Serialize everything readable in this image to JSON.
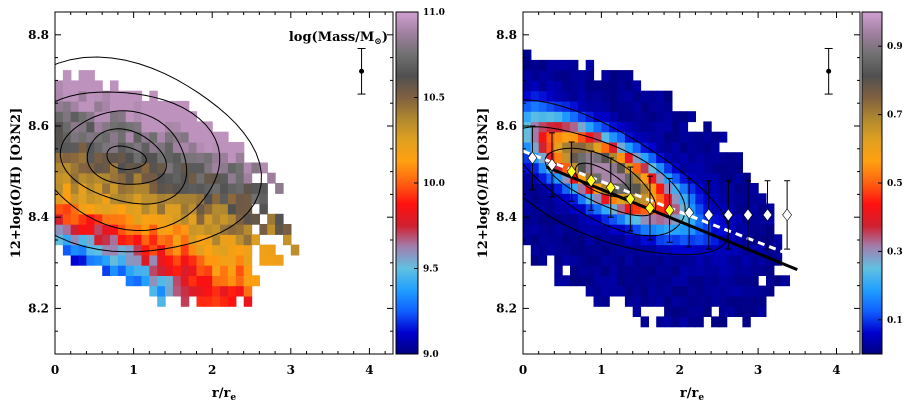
{
  "chart_data": [
    {
      "type": "heatmap",
      "panel": "left",
      "xlabel": "r/r",
      "xlabel_sub": "e",
      "ylabel": "12+log(O/H) [O3N2]",
      "xlim": [
        0,
        4.3
      ],
      "ylim": [
        8.1,
        8.85
      ],
      "x_ticks": [
        0,
        1,
        2,
        3,
        4
      ],
      "x_tick_labels": [
        "0",
        "1",
        "2",
        "3",
        "4"
      ],
      "y_ticks": [
        8.2,
        8.4,
        8.6,
        8.8
      ],
      "y_tick_labels": [
        "8.2",
        "8.4",
        "8.6",
        "8.8"
      ],
      "annotation": "log(Mass/M",
      "annotation_sym": "⊙",
      "annotation_close": ")",
      "colorbar": {
        "range": [
          9.0,
          11.0
        ],
        "ticks": [
          9.0,
          9.5,
          10.0,
          10.5,
          11.0
        ],
        "tick_labels": [
          "9.0",
          "9.5",
          "10.0",
          "10.5",
          "11.0"
        ],
        "colormap": [
          "#000080",
          "#0000d0",
          "#1060ff",
          "#20a0ff",
          "#60c0e0",
          "#a080b0",
          "#d02030",
          "#ff1010",
          "#ff6010",
          "#ffa010",
          "#e0a020",
          "#b08830",
          "#806040",
          "#505050",
          "#707070",
          "#a080a0",
          "#d0a0d0"
        ]
      },
      "contours": {
        "center": [
          0.9,
          8.53
        ],
        "levels": [
          {
            "rx": 0.25,
            "ry": 0.025
          },
          {
            "rx": 0.5,
            "ry": 0.06
          },
          {
            "rx": 0.8,
            "ry": 0.1
          },
          {
            "rx": 1.2,
            "ry": 0.15
          },
          {
            "rx": 1.65,
            "ry": 0.21
          }
        ]
      },
      "error_bar": {
        "x": 3.9,
        "y": 8.72,
        "yerr": 0.05
      }
    },
    {
      "type": "heatmap",
      "panel": "right",
      "xlabel": "r/r",
      "xlabel_sub": "e",
      "ylabel": "12+log(O/H) [O3N2]",
      "xlim": [
        0,
        4.3
      ],
      "ylim": [
        8.1,
        8.85
      ],
      "x_ticks": [
        0,
        1,
        2,
        3,
        4
      ],
      "x_tick_labels": [
        "0",
        "1",
        "2",
        "3",
        "4"
      ],
      "y_ticks": [
        8.2,
        8.4,
        8.6,
        8.8
      ],
      "y_tick_labels": [
        "8.2",
        "8.4",
        "8.6",
        "8.8"
      ],
      "colorbar": {
        "range": [
          0.0,
          1.0
        ],
        "ticks": [
          0.1,
          0.3,
          0.5,
          0.7,
          0.9
        ],
        "tick_labels": [
          "0.1",
          "0.3",
          "0.5",
          "0.7",
          "0.9"
        ],
        "colormap": [
          "#000080",
          "#0000d0",
          "#1060ff",
          "#20a0ff",
          "#60c0e0",
          "#a080b0",
          "#d02030",
          "#ff1010",
          "#ff6010",
          "#ffa010",
          "#e0a020",
          "#b08830",
          "#806040",
          "#505050",
          "#707070",
          "#a080a0",
          "#d0a0d0"
        ]
      },
      "contours": {
        "center": [
          1.0,
          8.48
        ],
        "levels": [
          {
            "rx": 0.35,
            "ry": 0.028
          },
          {
            "rx": 0.7,
            "ry": 0.055
          },
          {
            "rx": 1.1,
            "ry": 0.09
          },
          {
            "rx": 1.55,
            "ry": 0.13
          }
        ]
      },
      "binned_medians": {
        "x": [
          0.12,
          0.37,
          0.62,
          0.87,
          1.12,
          1.37,
          1.62,
          1.87,
          2.12,
          2.37,
          2.62,
          2.87,
          3.12,
          3.37
        ],
        "y": [
          8.53,
          8.515,
          8.5,
          8.48,
          8.465,
          8.44,
          8.42,
          8.415,
          8.41,
          8.405,
          8.405,
          8.405,
          8.405,
          8.405
        ],
        "yerr": [
          0.07,
          0.07,
          0.065,
          0.065,
          0.065,
          0.07,
          0.07,
          0.07,
          0.075,
          0.075,
          0.075,
          0.075,
          0.075,
          0.075
        ],
        "fill": [
          "#ffffff",
          "#ffffff",
          "#ffff20",
          "#ffff20",
          "#ffff20",
          "#ffff20",
          "#ffff20",
          "#ffff20",
          "#ffffff",
          "#ffffff",
          "#ffffff",
          "#ffffff",
          "#ffffff",
          "#ffffff"
        ]
      },
      "fit_solid": {
        "x": [
          0.3,
          3.5
        ],
        "y": [
          8.51,
          8.285
        ]
      },
      "fit_dashed": {
        "x": [
          0.0,
          3.45
        ],
        "y": [
          8.545,
          8.315
        ]
      },
      "error_bar": {
        "x": 3.9,
        "y": 8.72,
        "yerr": 0.05
      }
    }
  ]
}
